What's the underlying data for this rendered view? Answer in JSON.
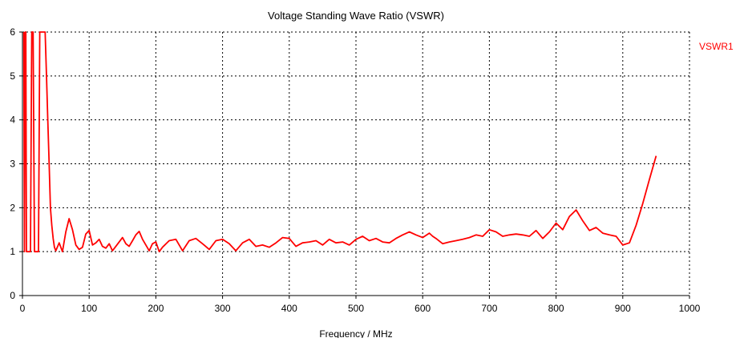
{
  "chart_data": {
    "type": "line",
    "title": "Voltage Standing Wave Ratio (VSWR)",
    "xlabel": "Frequency / MHz",
    "ylabel": "",
    "xlim": [
      0,
      1000
    ],
    "ylim": [
      0,
      6
    ],
    "x_ticks": [
      0,
      100,
      200,
      300,
      400,
      500,
      600,
      700,
      800,
      900,
      1000
    ],
    "y_ticks": [
      0,
      1,
      2,
      3,
      4,
      5,
      6
    ],
    "grid": "dashed",
    "legend": "right",
    "series": [
      {
        "name": "VSWR1",
        "color": "#ff0000",
        "x": [
          2,
          3,
          4,
          5,
          6,
          8,
          10,
          12,
          14,
          16,
          18,
          20,
          22,
          24,
          26,
          28,
          30,
          32,
          34,
          36,
          38,
          40,
          42,
          44,
          46,
          48,
          50,
          55,
          60,
          65,
          70,
          75,
          80,
          85,
          90,
          95,
          100,
          105,
          110,
          115,
          120,
          125,
          130,
          135,
          140,
          150,
          155,
          160,
          165,
          170,
          175,
          180,
          190,
          195,
          200,
          205,
          210,
          220,
          230,
          240,
          250,
          260,
          270,
          280,
          290,
          300,
          310,
          320,
          330,
          340,
          350,
          360,
          370,
          380,
          390,
          400,
          410,
          420,
          430,
          440,
          450,
          460,
          470,
          480,
          490,
          500,
          510,
          520,
          530,
          540,
          550,
          560,
          570,
          580,
          590,
          600,
          610,
          615,
          620,
          630,
          640,
          650,
          660,
          670,
          680,
          690,
          700,
          710,
          720,
          730,
          740,
          750,
          760,
          770,
          780,
          790,
          800,
          810,
          820,
          830,
          840,
          850,
          860,
          870,
          880,
          890,
          900,
          910,
          920,
          930,
          940,
          950
        ],
        "y": [
          6,
          1,
          6,
          6,
          1,
          1,
          1,
          1,
          6,
          6,
          1,
          1,
          1,
          1,
          6,
          6,
          6,
          6,
          6,
          5,
          4,
          3,
          2,
          1.6,
          1.3,
          1.1,
          1.02,
          1.2,
          1.0,
          1.45,
          1.75,
          1.5,
          1.15,
          1.05,
          1.1,
          1.4,
          1.48,
          1.15,
          1.2,
          1.28,
          1.12,
          1.08,
          1.18,
          1.02,
          1.12,
          1.32,
          1.18,
          1.12,
          1.25,
          1.38,
          1.46,
          1.28,
          1.02,
          1.18,
          1.22,
          1.0,
          1.1,
          1.25,
          1.28,
          1.02,
          1.25,
          1.3,
          1.18,
          1.05,
          1.25,
          1.28,
          1.18,
          1.02,
          1.2,
          1.28,
          1.12,
          1.15,
          1.1,
          1.2,
          1.32,
          1.3,
          1.12,
          1.2,
          1.22,
          1.25,
          1.15,
          1.28,
          1.2,
          1.22,
          1.15,
          1.28,
          1.35,
          1.25,
          1.3,
          1.22,
          1.2,
          1.3,
          1.38,
          1.45,
          1.38,
          1.32,
          1.42,
          1.35,
          1.3,
          1.18,
          1.22,
          1.25,
          1.28,
          1.32,
          1.38,
          1.35,
          1.5,
          1.45,
          1.35,
          1.38,
          1.4,
          1.38,
          1.35,
          1.48,
          1.3,
          1.45,
          1.65,
          1.5,
          1.8,
          1.95,
          1.7,
          1.48,
          1.55,
          1.42,
          1.38,
          1.35,
          1.15,
          1.2,
          1.6,
          2.1,
          2.65,
          3.18
        ]
      }
    ]
  }
}
